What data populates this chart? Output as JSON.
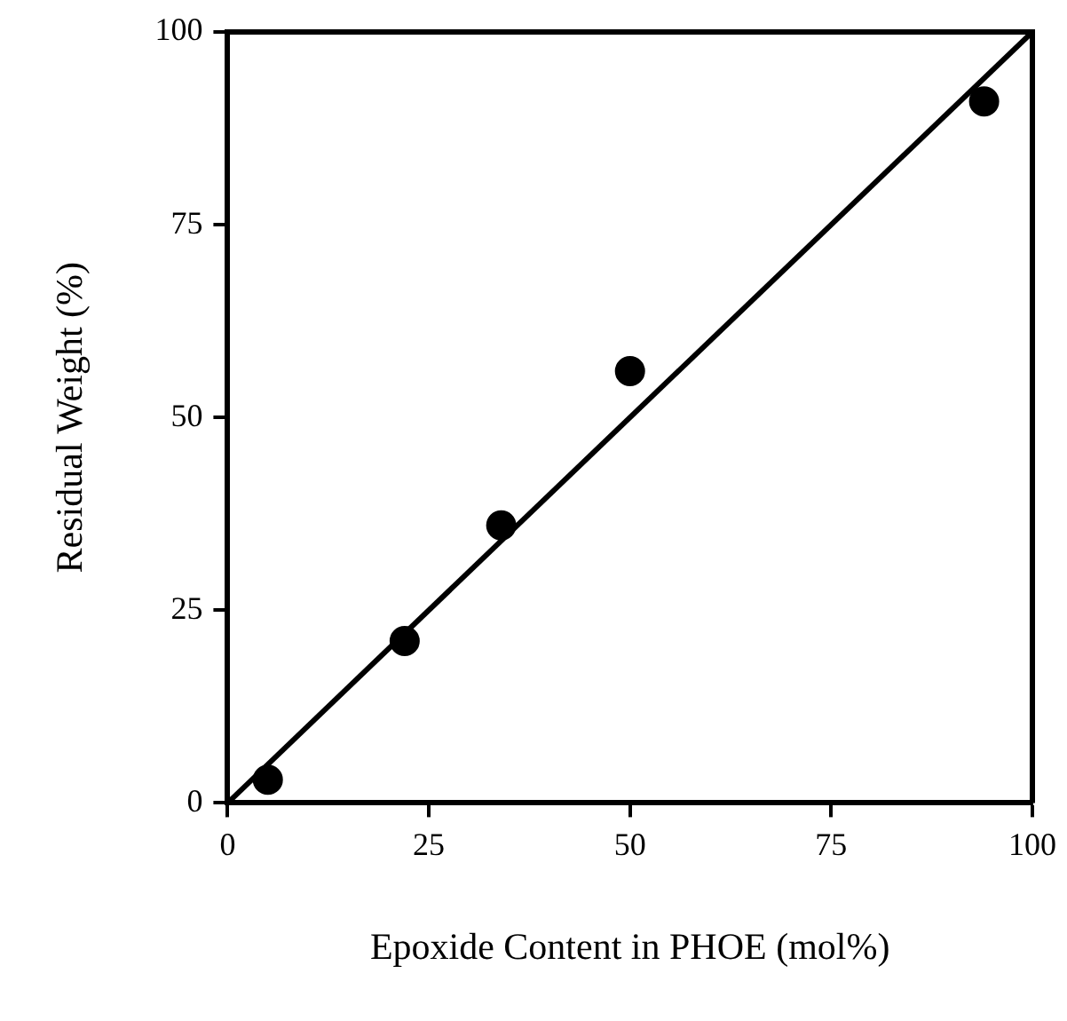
{
  "chart_data": {
    "type": "scatter",
    "xlabel": "Epoxide Content in PHOE (mol%)",
    "ylabel": "Residual Weight (%)",
    "xlim": [
      0,
      100
    ],
    "ylim": [
      0,
      100
    ],
    "xticks": [
      0,
      25,
      50,
      75,
      100
    ],
    "yticks": [
      0,
      25,
      50,
      75,
      100
    ],
    "grid": false,
    "legend": false,
    "marker": "circle",
    "series": [
      {
        "type": "scatter",
        "color": "#000000",
        "x": [
          5,
          22,
          34,
          50,
          94
        ],
        "values": [
          3,
          21,
          36,
          56,
          91
        ]
      },
      {
        "type": "line",
        "color": "#000000",
        "x": [
          0,
          100
        ],
        "values": [
          0,
          100
        ],
        "marker": "none",
        "line_style": "solid"
      }
    ]
  }
}
